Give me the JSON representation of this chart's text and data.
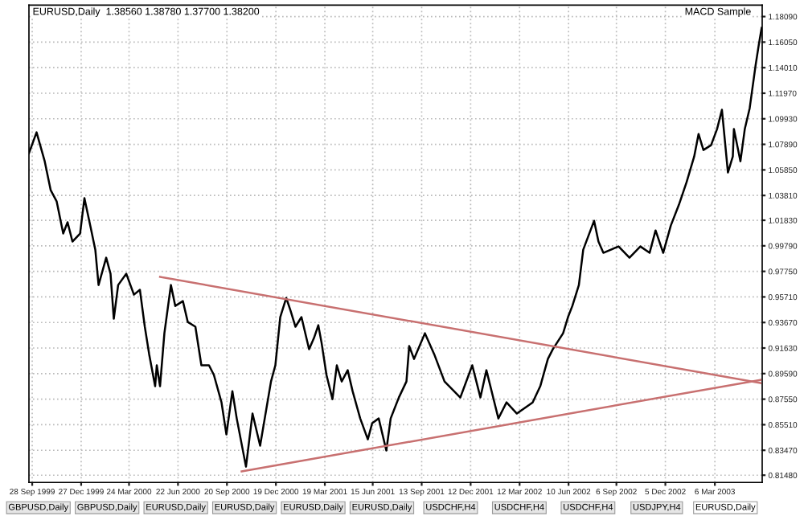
{
  "chart_data": {
    "type": "line",
    "title": "EURUSD,Daily  1.38560 1.38780 1.37700 1.38200",
    "annotations": [
      "MACD Sample",
      "GBPUSD,Daily",
      "GBPUSD,Daily",
      "EURUSD,Daily",
      "EURUSD,Daily",
      "EURUSD,Daily",
      "EURUSD,Daily",
      "USDCHF,H4",
      "USDCHF,H4",
      "USDCHF,H4",
      "USDJPY,H4",
      "EURUSD,Daily"
    ],
    "xlim": [
      "1999-09-22",
      "2003-06-01"
    ],
    "xticks": [
      {
        "value": "1999-09-28",
        "label": "28 Sep 1999"
      },
      {
        "value": "1999-12-27",
        "label": "27 Dec 1999"
      },
      {
        "value": "2000-03-24",
        "label": "24 Mar 2000"
      },
      {
        "value": "2000-06-22",
        "label": "22 Jun 2000"
      },
      {
        "value": "2000-09-20",
        "label": "20 Sep 2000"
      },
      {
        "value": "2000-12-19",
        "label": "19 Dec 2000"
      },
      {
        "value": "2001-03-19",
        "label": "19 Mar 2001"
      },
      {
        "value": "2001-06-15",
        "label": "15 Jun 2001"
      },
      {
        "value": "2001-09-13",
        "label": "13 Sep 2001"
      },
      {
        "value": "2001-12-12",
        "label": "12 Dec 2001"
      },
      {
        "value": "2002-03-12",
        "label": "12 Mar 2002"
      },
      {
        "value": "2002-06-10",
        "label": "10 Jun 2002"
      },
      {
        "value": "2002-09-06",
        "label": "6 Sep 2002"
      },
      {
        "value": "2002-12-05",
        "label": "5 Dec 2002"
      },
      {
        "value": "2003-03-06",
        "label": "6 Mar 2003"
      }
    ],
    "ylim": [
      0.809,
      1.19
    ],
    "yticks": [
      {
        "value": 1.1809,
        "label": "1.18090"
      },
      {
        "value": 1.1605,
        "label": "1.16050"
      },
      {
        "value": 1.1401,
        "label": "1.14010"
      },
      {
        "value": 1.1197,
        "label": "1.11970"
      },
      {
        "value": 1.0993,
        "label": "1.09930"
      },
      {
        "value": 1.0789,
        "label": "1.07890"
      },
      {
        "value": 1.0585,
        "label": "1.05850"
      },
      {
        "value": 1.0381,
        "label": "1.03810"
      },
      {
        "value": 1.0183,
        "label": "1.01830"
      },
      {
        "value": 0.9979,
        "label": "0.99790"
      },
      {
        "value": 0.9775,
        "label": "0.97750"
      },
      {
        "value": 0.9571,
        "label": "0.95710"
      },
      {
        "value": 0.9367,
        "label": "0.93670"
      },
      {
        "value": 0.9163,
        "label": "0.91630"
      },
      {
        "value": 0.8959,
        "label": "0.89590"
      },
      {
        "value": 0.8755,
        "label": "0.87550"
      },
      {
        "value": 0.8551,
        "label": "0.85510"
      },
      {
        "value": 0.8347,
        "label": "0.83470"
      },
      {
        "value": 0.8148,
        "label": "0.81480"
      }
    ],
    "grid": true,
    "series": [
      {
        "color": "#000000",
        "x": [
          "1999-09-22",
          "1999-10-06",
          "1999-10-21",
          "1999-11-01",
          "1999-11-12",
          "1999-11-24",
          "1999-12-02",
          "1999-12-11",
          "1999-12-25",
          "2000-01-02",
          "2000-01-14",
          "2000-01-22",
          "2000-01-28",
          "2000-02-11",
          "2000-02-19",
          "2000-02-25",
          "2000-03-04",
          "2000-03-19",
          "2000-04-02",
          "2000-04-13",
          "2000-04-22",
          "2000-04-30",
          "2000-05-11",
          "2000-05-14",
          "2000-05-20",
          "2000-05-28",
          "2000-06-09",
          "2000-06-17",
          "2000-07-01",
          "2000-07-10",
          "2000-07-24",
          "2000-08-04",
          "2000-08-18",
          "2000-08-27",
          "2000-09-10",
          "2000-09-19",
          "2000-09-30",
          "2000-10-08",
          "2000-10-25",
          "2000-11-06",
          "2000-11-20",
          "2000-12-10",
          "2000-12-18",
          "2000-12-27",
          "2001-01-07",
          "2001-01-15",
          "2001-01-24",
          "2001-02-04",
          "2001-02-18",
          "2001-02-27",
          "2001-03-07",
          "2001-03-13",
          "2001-03-22",
          "2001-04-02",
          "2001-04-10",
          "2001-04-19",
          "2001-04-30",
          "2001-05-09",
          "2001-05-23",
          "2001-06-06",
          "2001-06-14",
          "2001-06-26",
          "2001-07-10",
          "2001-07-18",
          "2001-08-02",
          "2001-08-16",
          "2001-08-21",
          "2001-08-30",
          "2001-09-19",
          "2001-10-06",
          "2001-10-25",
          "2001-11-23",
          "2001-12-15",
          "2001-12-30",
          "2002-01-10",
          "2002-02-01",
          "2002-02-16",
          "2002-03-07",
          "2002-04-05",
          "2002-04-19",
          "2002-05-03",
          "2002-05-12",
          "2002-05-31",
          "2002-06-09",
          "2002-06-17",
          "2002-06-29",
          "2002-07-07",
          "2002-07-27",
          "2002-08-04",
          "2002-08-13",
          "2002-09-10",
          "2002-09-30",
          "2002-10-20",
          "2002-11-06",
          "2002-11-17",
          "2002-12-01",
          "2002-12-15",
          "2002-12-30",
          "2003-01-13",
          "2003-01-27",
          "2003-02-04",
          "2003-02-13",
          "2003-02-27",
          "2003-03-10",
          "2003-03-19",
          "2003-03-30",
          "2003-04-08",
          "2003-04-10",
          "2003-04-22",
          "2003-04-30",
          "2003-05-09",
          "2003-05-20",
          "2003-05-26",
          "2003-05-31"
        ],
        "values": [
          1.0718,
          1.0885,
          1.0654,
          1.0423,
          1.0333,
          1.0077,
          1.0167,
          1.0013,
          1.0077,
          1.0359,
          1.0115,
          0.9948,
          0.9666,
          0.9884,
          0.9756,
          0.9397,
          0.9666,
          0.9756,
          0.9589,
          0.9628,
          0.9333,
          0.9114,
          0.8858,
          0.9025,
          0.8858,
          0.9281,
          0.9666,
          0.9499,
          0.9538,
          0.9371,
          0.9333,
          0.9025,
          0.9025,
          0.8948,
          0.8729,
          0.8473,
          0.8819,
          0.8601,
          0.8216,
          0.864,
          0.8384,
          0.8896,
          0.9025,
          0.941,
          0.9563,
          0.9461,
          0.9333,
          0.941,
          0.9153,
          0.9243,
          0.9345,
          0.9204,
          0.8948,
          0.8755,
          0.9025,
          0.8896,
          0.8986,
          0.8819,
          0.8601,
          0.8434,
          0.8563,
          0.8601,
          0.8345,
          0.8601,
          0.8768,
          0.8896,
          0.9179,
          0.9076,
          0.9281,
          0.9114,
          0.8896,
          0.8768,
          0.9025,
          0.8768,
          0.8986,
          0.8601,
          0.8729,
          0.864,
          0.8729,
          0.8858,
          0.9076,
          0.9153,
          0.9281,
          0.941,
          0.9499,
          0.9666,
          0.9948,
          1.0179,
          1.0013,
          0.9923,
          0.9974,
          0.9884,
          0.9974,
          0.9923,
          1.0102,
          0.9923,
          1.0141,
          1.0308,
          1.0487,
          1.0692,
          1.0872,
          1.0744,
          1.0782,
          1.0911,
          1.1065,
          1.0564,
          1.0692,
          1.0911,
          1.0654,
          1.0911,
          1.1077,
          1.1424,
          1.1591,
          1.1719
        ]
      },
      {
        "type": "line",
        "color": "#c87070",
        "x": [
          "2000-05-20",
          "2003-05-29"
        ],
        "values": [
          0.9731,
          0.8884
        ]
      },
      {
        "type": "line",
        "color": "#c87070",
        "x": [
          "2000-10-17",
          "2003-05-29"
        ],
        "values": [
          0.8178,
          0.8909
        ]
      }
    ]
  }
}
